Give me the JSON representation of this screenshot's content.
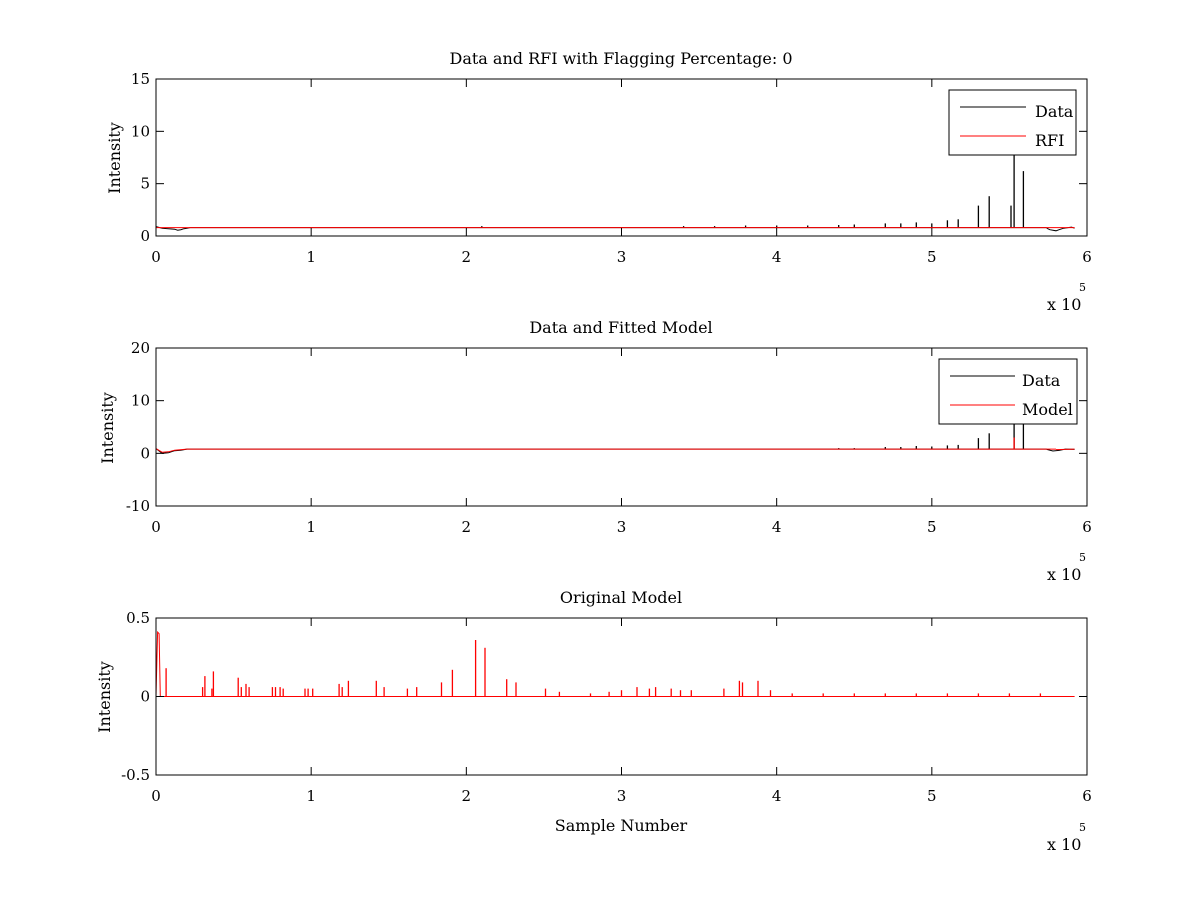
{
  "chart_data": [
    {
      "type": "line",
      "title": "Data and RFI with Flagging Percentage: 0",
      "xlabel": "",
      "ylabel": "Intensity",
      "xlim": [
        0,
        600000
      ],
      "ylim": [
        0,
        15
      ],
      "xticks": [
        0,
        1,
        2,
        3,
        4,
        5,
        6
      ],
      "yticks": [
        0,
        5,
        10,
        15
      ],
      "x_multiplier": "x 10",
      "x_multiplier_exp": "5",
      "legend": {
        "position": "top-right",
        "entries": [
          "Data",
          "RFI"
        ]
      },
      "series": [
        {
          "name": "Data",
          "color": "#000000",
          "baseline": 0.8,
          "start_points": [
            [
              0,
              0.9
            ],
            [
              4000,
              0.75
            ],
            [
              8000,
              0.7
            ],
            [
              12000,
              0.65
            ],
            [
              14000,
              0.55
            ],
            [
              16000,
              0.6
            ],
            [
              18000,
              0.7
            ],
            [
              20000,
              0.75
            ],
            [
              22000,
              0.8
            ]
          ],
          "end_points": [
            [
              574000,
              0.75
            ],
            [
              576000,
              0.6
            ],
            [
              578000,
              0.55
            ],
            [
              580000,
              0.5
            ],
            [
              582000,
              0.6
            ],
            [
              585000,
              0.75
            ],
            [
              590000,
              0.85
            ],
            [
              592000,
              0.75
            ]
          ],
          "spikes": [
            [
              210000,
              0.95
            ],
            [
              340000,
              0.95
            ],
            [
              360000,
              0.95
            ],
            [
              380000,
              1.0
            ],
            [
              400000,
              1.0
            ],
            [
              420000,
              1.0
            ],
            [
              440000,
              1.05
            ],
            [
              450000,
              1.1
            ],
            [
              470000,
              1.2
            ],
            [
              480000,
              1.2
            ],
            [
              490000,
              1.3
            ],
            [
              500000,
              1.2
            ],
            [
              510000,
              1.5
            ],
            [
              517000,
              1.6
            ],
            [
              530000,
              2.9
            ],
            [
              537000,
              3.8
            ],
            [
              551000,
              2.9
            ],
            [
              553000,
              8.0
            ],
            [
              559000,
              6.2
            ]
          ]
        },
        {
          "name": "RFI",
          "color": "#ff0000",
          "baseline": 0.8,
          "start_points": [],
          "end_points": [],
          "spikes": []
        }
      ]
    },
    {
      "type": "line",
      "title": "Data and Fitted Model",
      "xlabel": "",
      "ylabel": "Intensity",
      "xlim": [
        0,
        600000
      ],
      "ylim": [
        -10,
        20
      ],
      "xticks": [
        0,
        1,
        2,
        3,
        4,
        5,
        6
      ],
      "yticks": [
        -10,
        0,
        10,
        20
      ],
      "x_multiplier": "x 10",
      "x_multiplier_exp": "5",
      "legend": {
        "position": "top-right",
        "entries": [
          "Data",
          "Model"
        ]
      },
      "series": [
        {
          "name": "Data",
          "color": "#000000",
          "baseline": 0.8,
          "start_points": [
            [
              0,
              0.9
            ],
            [
              4000,
              0.0
            ],
            [
              8000,
              0.1
            ],
            [
              12000,
              0.5
            ],
            [
              16000,
              0.6
            ],
            [
              20000,
              0.8
            ]
          ],
          "end_points": [
            [
              574000,
              0.75
            ],
            [
              578000,
              0.45
            ],
            [
              582000,
              0.55
            ],
            [
              586000,
              0.8
            ],
            [
              592000,
              0.75
            ]
          ],
          "spikes": [
            [
              440000,
              1.0
            ],
            [
              450000,
              1.0
            ],
            [
              470000,
              1.2
            ],
            [
              480000,
              1.2
            ],
            [
              490000,
              1.4
            ],
            [
              500000,
              1.3
            ],
            [
              510000,
              1.5
            ],
            [
              517000,
              1.6
            ],
            [
              530000,
              2.9
            ],
            [
              537000,
              3.8
            ],
            [
              553000,
              6.0
            ],
            [
              559000,
              6.2
            ]
          ]
        },
        {
          "name": "Model",
          "color": "#ff0000",
          "baseline": 0.8,
          "start_points": [
            [
              0,
              0.9
            ],
            [
              4000,
              0.2
            ],
            [
              8000,
              0.3
            ],
            [
              12000,
              0.6
            ],
            [
              20000,
              0.8
            ]
          ],
          "end_points": [
            [
              580000,
              0.7
            ],
            [
              592000,
              0.8
            ]
          ],
          "spikes": [
            [
              210000,
              0.9
            ],
            [
              553000,
              3.0
            ]
          ]
        }
      ]
    },
    {
      "type": "line",
      "title": "Original Model",
      "xlabel": "Sample Number",
      "ylabel": "Intensity",
      "xlim": [
        0,
        600000
      ],
      "ylim": [
        -0.5,
        0.5
      ],
      "xticks": [
        0,
        1,
        2,
        3,
        4,
        5,
        6
      ],
      "yticks": [
        -0.5,
        0,
        0.5
      ],
      "x_multiplier": "x 10",
      "x_multiplier_exp": "5",
      "series": [
        {
          "name": "Model",
          "color": "#ff0000",
          "baseline": 0.0,
          "start_points": [
            [
              0,
              0.0
            ],
            [
              1000,
              0.41
            ],
            [
              2000,
              0.4
            ],
            [
              2800,
              0.0
            ]
          ],
          "end_points": [
            [
              592000,
              0.0
            ]
          ],
          "spikes": [
            [
              6500,
              0.18
            ],
            [
              30000,
              0.06
            ],
            [
              31500,
              0.13
            ],
            [
              36000,
              0.05
            ],
            [
              37000,
              0.16
            ],
            [
              53000,
              0.12
            ],
            [
              55000,
              0.06
            ],
            [
              58000,
              0.08
            ],
            [
              60000,
              0.06
            ],
            [
              75000,
              0.06
            ],
            [
              77000,
              0.06
            ],
            [
              80000,
              0.06
            ],
            [
              82000,
              0.05
            ],
            [
              96000,
              0.05
            ],
            [
              98000,
              0.05
            ],
            [
              101000,
              0.05
            ],
            [
              118000,
              0.08
            ],
            [
              120000,
              0.06
            ],
            [
              124000,
              0.1
            ],
            [
              142000,
              0.1
            ],
            [
              147000,
              0.06
            ],
            [
              162000,
              0.05
            ],
            [
              168000,
              0.06
            ],
            [
              184000,
              0.09
            ],
            [
              191000,
              0.17
            ],
            [
              206000,
              0.36
            ],
            [
              212000,
              0.31
            ],
            [
              226000,
              0.11
            ],
            [
              232000,
              0.09
            ],
            [
              251000,
              0.05
            ],
            [
              260000,
              0.03
            ],
            [
              280000,
              0.02
            ],
            [
              292000,
              0.03
            ],
            [
              300000,
              0.04
            ],
            [
              310000,
              0.06
            ],
            [
              318000,
              0.05
            ],
            [
              322000,
              0.06
            ],
            [
              332000,
              0.05
            ],
            [
              338000,
              0.04
            ],
            [
              345000,
              0.04
            ],
            [
              366000,
              0.05
            ],
            [
              376000,
              0.1
            ],
            [
              378000,
              0.09
            ],
            [
              388000,
              0.1
            ],
            [
              396000,
              0.04
            ],
            [
              410000,
              0.02
            ],
            [
              430000,
              0.02
            ],
            [
              450000,
              0.02
            ],
            [
              470000,
              0.02
            ],
            [
              490000,
              0.02
            ],
            [
              510000,
              0.02
            ],
            [
              530000,
              0.02
            ],
            [
              550000,
              0.02
            ],
            [
              570000,
              0.02
            ]
          ]
        }
      ]
    }
  ]
}
